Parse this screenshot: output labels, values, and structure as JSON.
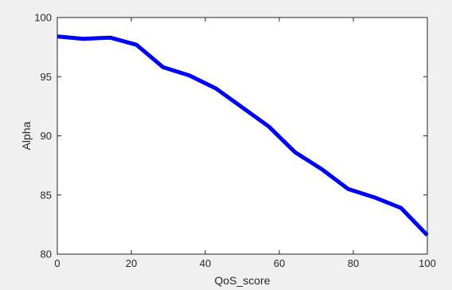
{
  "chart_data": {
    "type": "line",
    "title": "",
    "xlabel": "QoS_score",
    "ylabel": "Alpha",
    "xlim": [
      0,
      100
    ],
    "ylim": [
      80,
      100
    ],
    "xticks": [
      0,
      20,
      40,
      60,
      80,
      100
    ],
    "yticks": [
      80,
      85,
      90,
      95,
      100
    ],
    "grid": false,
    "series": [
      {
        "color": "#0000ff",
        "x": [
          0,
          7.1,
          14.3,
          21.4,
          28.6,
          35.7,
          42.9,
          50.0,
          57.1,
          64.3,
          71.4,
          78.6,
          85.7,
          92.9,
          100
        ],
        "y": [
          98.4,
          98.2,
          98.3,
          97.7,
          95.8,
          95.1,
          94.0,
          92.4,
          90.8,
          88.6,
          87.2,
          85.5,
          84.8,
          83.9,
          81.6
        ]
      }
    ]
  }
}
